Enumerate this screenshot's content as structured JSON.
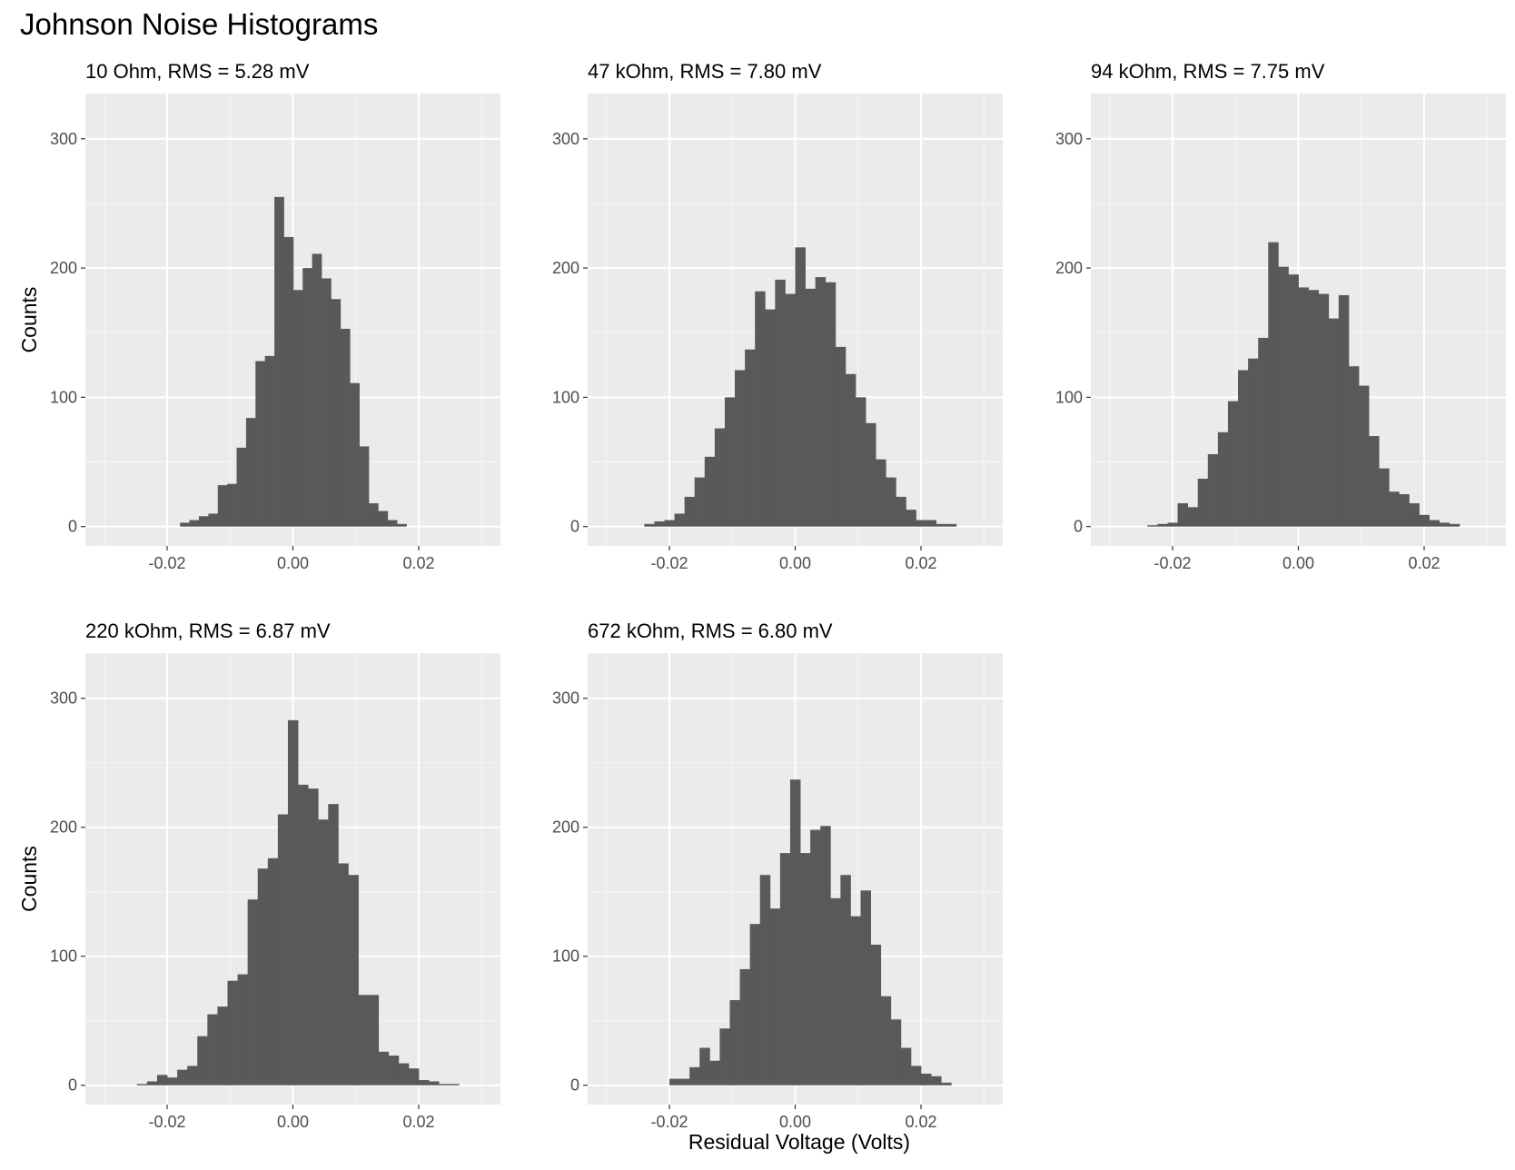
{
  "title": "Johnson Noise Histograms",
  "x_axis_label": "Residual Voltage (Volts)",
  "y_axis_label": "Counts",
  "chart_data": [
    {
      "type": "bar",
      "title": "10 Ohm, RMS = 5.28 mV",
      "xlim": [
        -0.033,
        0.033
      ],
      "ylim": [
        -15,
        300
      ],
      "x_ticks": [
        -0.02,
        0.0,
        0.02
      ],
      "x_tick_labels": [
        "-0.02",
        "0.00",
        "0.02"
      ],
      "y_ticks": [
        0,
        100,
        200,
        300
      ],
      "y_tick_labels": [
        "0",
        "100",
        "200",
        "300"
      ],
      "xlabel": "",
      "ylabel": "Counts",
      "bin_width": 0.0015,
      "bin_centers": [
        -0.0172,
        -0.0157,
        -0.0142,
        -0.0127,
        -0.0112,
        -0.0097,
        -0.0082,
        -0.0067,
        -0.0052,
        -0.0037,
        -0.0022,
        -0.0007,
        0.0008,
        0.0023,
        0.0038,
        0.0053,
        0.0068,
        0.0083,
        0.0098,
        0.0113,
        0.0128,
        0.0143,
        0.0158,
        0.0173,
        0.0188
      ],
      "values": [
        3,
        5,
        8,
        10,
        32,
        33,
        61,
        84,
        128,
        132,
        255,
        224,
        183,
        200,
        211,
        192,
        176,
        153,
        111,
        62,
        18,
        12,
        5,
        2,
        0
      ]
    },
    {
      "type": "bar",
      "title": "47 kOhm, RMS = 7.80 mV",
      "xlim": [
        -0.033,
        0.033
      ],
      "ylim": [
        -15,
        300
      ],
      "x_ticks": [
        -0.02,
        0.0,
        0.02
      ],
      "x_tick_labels": [
        "-0.02",
        "0.00",
        "0.02"
      ],
      "y_ticks": [
        0,
        100,
        200,
        300
      ],
      "y_tick_labels": [
        "0",
        "100",
        "200",
        "300"
      ],
      "xlabel": "",
      "ylabel": "",
      "bin_width": 0.0016,
      "bin_centers": [
        -0.0232,
        -0.0216,
        -0.02,
        -0.0184,
        -0.0168,
        -0.0152,
        -0.0136,
        -0.012,
        -0.0104,
        -0.0088,
        -0.0072,
        -0.0056,
        -0.004,
        -0.0024,
        -0.0008,
        0.0008,
        0.0024,
        0.004,
        0.0056,
        0.0072,
        0.0088,
        0.0104,
        0.012,
        0.0136,
        0.0152,
        0.0168,
        0.0184,
        0.02,
        0.0216,
        0.0232,
        0.0248
      ],
      "values": [
        2,
        4,
        5,
        10,
        23,
        38,
        54,
        76,
        100,
        121,
        137,
        182,
        168,
        191,
        180,
        216,
        184,
        193,
        189,
        139,
        118,
        100,
        80,
        52,
        38,
        23,
        13,
        5,
        5,
        2,
        2
      ]
    },
    {
      "type": "bar",
      "title": "94 kOhm, RMS = 7.75 mV",
      "xlim": [
        -0.033,
        0.033
      ],
      "ylim": [
        -15,
        300
      ],
      "x_ticks": [
        -0.02,
        0.0,
        0.02
      ],
      "x_tick_labels": [
        "-0.02",
        "0.00",
        "0.02"
      ],
      "y_ticks": [
        0,
        100,
        200,
        300
      ],
      "y_tick_labels": [
        "0",
        "100",
        "200",
        "300"
      ],
      "xlabel": "",
      "ylabel": "",
      "bin_width": 0.0016,
      "bin_centers": [
        -0.0232,
        -0.0216,
        -0.02,
        -0.0184,
        -0.0168,
        -0.0152,
        -0.0136,
        -0.012,
        -0.0104,
        -0.0088,
        -0.0072,
        -0.0056,
        -0.004,
        -0.0024,
        -0.0008,
        0.0008,
        0.0024,
        0.004,
        0.0056,
        0.0072,
        0.0088,
        0.0104,
        0.012,
        0.0136,
        0.0152,
        0.0168,
        0.0184,
        0.02,
        0.0216,
        0.0232,
        0.0248
      ],
      "values": [
        1,
        2,
        3,
        18,
        15,
        37,
        56,
        73,
        97,
        121,
        130,
        146,
        220,
        201,
        195,
        185,
        183,
        180,
        161,
        179,
        124,
        109,
        70,
        45,
        27,
        25,
        18,
        9,
        5,
        3,
        2
      ]
    },
    {
      "type": "bar",
      "title": "220 kOhm, RMS = 6.87 mV",
      "xlim": [
        -0.033,
        0.033
      ],
      "ylim": [
        -15,
        300
      ],
      "x_ticks": [
        -0.02,
        0.0,
        0.02
      ],
      "x_tick_labels": [
        "-0.02",
        "0.00",
        "0.02"
      ],
      "y_ticks": [
        0,
        100,
        200,
        300
      ],
      "y_tick_labels": [
        "0",
        "100",
        "200",
        "300"
      ],
      "xlabel": "",
      "ylabel": "Counts",
      "bin_width": 0.0016,
      "bin_centers": [
        -0.024,
        -0.0224,
        -0.0208,
        -0.0192,
        -0.0176,
        -0.016,
        -0.0144,
        -0.0128,
        -0.0112,
        -0.0096,
        -0.008,
        -0.0064,
        -0.0048,
        -0.0032,
        -0.0016,
        0.0,
        0.0016,
        0.0032,
        0.0048,
        0.0064,
        0.008,
        0.0096,
        0.0112,
        0.0128,
        0.0144,
        0.016,
        0.0176,
        0.0192,
        0.0208,
        0.0224,
        0.024,
        0.0256
      ],
      "values": [
        1,
        3,
        8,
        6,
        12,
        15,
        38,
        55,
        61,
        81,
        86,
        144,
        168,
        176,
        210,
        283,
        233,
        230,
        206,
        218,
        172,
        163,
        70,
        70,
        26,
        23,
        17,
        13,
        4,
        3,
        1,
        1
      ]
    },
    {
      "type": "bar",
      "title": "672 kOhm, RMS = 6.80 mV",
      "xlim": [
        -0.033,
        0.033
      ],
      "ylim": [
        -15,
        300
      ],
      "x_ticks": [
        -0.02,
        0.0,
        0.02
      ],
      "x_tick_labels": [
        "-0.02",
        "0.00",
        "0.02"
      ],
      "y_ticks": [
        0,
        100,
        200,
        300
      ],
      "y_tick_labels": [
        "0",
        "100",
        "200",
        "300"
      ],
      "xlabel": "Residual Voltage (Volts)",
      "ylabel": "",
      "bin_width": 0.0016,
      "bin_centers": [
        -0.0192,
        -0.0176,
        -0.016,
        -0.0144,
        -0.0128,
        -0.0112,
        -0.0096,
        -0.008,
        -0.0064,
        -0.0048,
        -0.0032,
        -0.0016,
        0.0,
        0.0016,
        0.0032,
        0.0048,
        0.0064,
        0.008,
        0.0096,
        0.0112,
        0.0128,
        0.0144,
        0.016,
        0.0176,
        0.0192,
        0.0208,
        0.0224,
        0.024
      ],
      "values": [
        5,
        5,
        14,
        29,
        19,
        44,
        66,
        90,
        125,
        163,
        137,
        180,
        237,
        180,
        198,
        201,
        145,
        163,
        131,
        151,
        109,
        69,
        51,
        29,
        15,
        9,
        7,
        2
      ]
    }
  ]
}
